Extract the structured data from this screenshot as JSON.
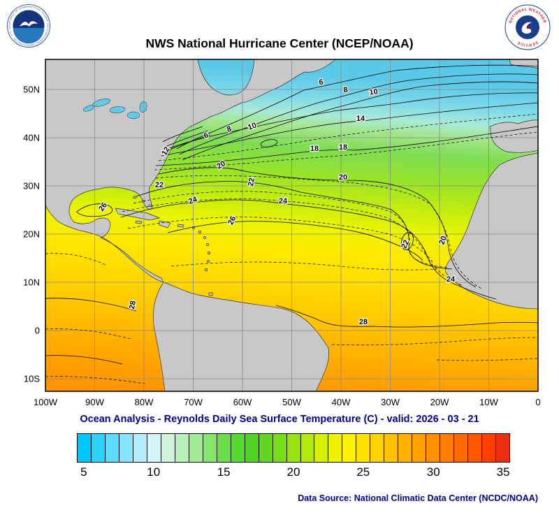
{
  "header": {
    "title": "NWS National Hurricane Center (NCEP/NOAA)"
  },
  "logos": {
    "noaa_ring_text": "NATIONAL OCEANIC AND ATMOSPHERIC ADMINISTRATION · U.S. DEPARTMENT OF COMMERCE ·",
    "nws_ring_top": "NATIONAL WEATHER",
    "nws_ring_bottom": "SERVICE"
  },
  "map": {
    "y_axis_labels": [
      "50N",
      "40N",
      "30N",
      "20N",
      "10N",
      "0",
      "10S"
    ],
    "x_axis_labels": [
      "100W",
      "90W",
      "80W",
      "70W",
      "60W",
      "50W",
      "40W",
      "30W",
      "20W",
      "10W",
      "0"
    ],
    "contour_labels": [
      "6",
      "8",
      "10",
      "6",
      "8",
      "10",
      "12",
      "14",
      "18",
      "18",
      "20",
      "20",
      "22",
      "22",
      "24",
      "24",
      "26",
      "26",
      "20",
      "22",
      "24",
      "28",
      "28"
    ]
  },
  "footer": {
    "subtitle": "Ocean Analysis - Reynolds Daily Sea Surface Temperature (C) - valid: 2026 - 03 - 21",
    "data_source": "Data Source: National Climatic Data Center (NCDC/NOAA)"
  },
  "colorbar": {
    "tick_labels": [
      "5",
      "10",
      "15",
      "20",
      "25",
      "30",
      "35"
    ],
    "colors": [
      "#00C8FF",
      "#2BD3FF",
      "#59DDFF",
      "#87E6FF",
      "#B3EFFF",
      "#D5F6F8",
      "#CFF5DE",
      "#B9F1BA",
      "#9FEC94",
      "#84E66E",
      "#6ADF49",
      "#55DA2F",
      "#4FD426",
      "#5FD720",
      "#79DC18",
      "#97E311",
      "#B6E90B",
      "#D5EF05",
      "#EEF400",
      "#FDF000",
      "#FFE300",
      "#FFD300",
      "#FFC300",
      "#FFB200",
      "#FFA200",
      "#FF9100",
      "#FF7E00",
      "#FF6A00",
      "#FF5600",
      "#FF3E00",
      "#EE2E10"
    ]
  },
  "colors": {
    "land": "#C8C8C8",
    "navy_text": "#00008B",
    "grid": "#8A8A8A"
  },
  "chart_data": {
    "type": "contour-map",
    "title": "NWS National Hurricane Center (NCEP/NOAA)",
    "subtitle": "Ocean Analysis - Reynolds Daily Sea Surface Temperature (C) - valid: 2026 - 03 - 21",
    "variable": "Reynolds Daily Sea Surface Temperature (C)",
    "region": "North Atlantic / Tropical Atlantic",
    "lon_ticks": [
      "100W",
      "90W",
      "80W",
      "70W",
      "60W",
      "50W",
      "40W",
      "30W",
      "20W",
      "10W",
      "0"
    ],
    "lat_ticks": [
      "50N",
      "40N",
      "30N",
      "20N",
      "10N",
      "0",
      "10S"
    ],
    "labeled_contours_c": [
      6,
      8,
      10,
      12,
      14,
      18,
      20,
      22,
      24,
      26,
      28
    ],
    "contour_interval_c": 1,
    "colorbar_ticks_c": [
      5,
      10,
      15,
      20,
      25,
      30,
      35
    ],
    "colorbar_range_c": [
      4,
      35
    ],
    "data_source": "National Climatic Data Center (NCDC/NOAA)"
  }
}
